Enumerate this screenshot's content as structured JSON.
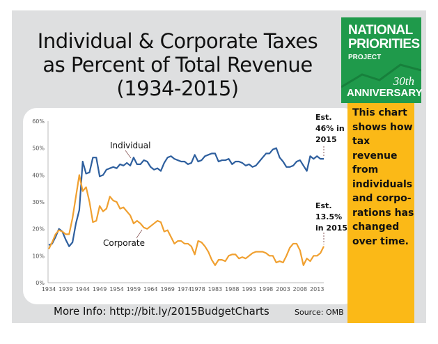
{
  "title": {
    "line1": "Individual & Corporate Taxes",
    "line2": "as Percent of Total Revenue",
    "line3": "(1934-2015)"
  },
  "logo": {
    "line1": "NATIONAL",
    "line2": "PRIORITIES",
    "line3": "PROJECT",
    "line4": "30th",
    "line5": "ANNIVERSARY",
    "color": "#1f9a4b"
  },
  "sidebar": {
    "lines": [
      "This chart",
      "shows how",
      "tax",
      "revenue",
      "from",
      "individuals",
      "and corpo-",
      "rations has",
      "changed",
      "over time."
    ],
    "color": "#fbb917"
  },
  "footer": {
    "info": "More Info: http://bit.ly/2015BudgetCharts",
    "source": "Source: OMB"
  },
  "chart_data": {
    "type": "line",
    "title": "",
    "xlim": [
      1934,
      2015
    ],
    "ylim": [
      0,
      60
    ],
    "yticks": [
      "0%",
      "10%",
      "20%",
      "30%",
      "40%",
      "50%",
      "60%"
    ],
    "xticks": [
      "1934",
      "1939",
      "1944",
      "1949",
      "1954",
      "1959",
      "1964",
      "1969",
      "1974",
      "1978",
      "1983",
      "1988",
      "1993",
      "1998",
      "2003",
      "2008",
      "2013"
    ],
    "grid": false,
    "annotations": {
      "individual_est": [
        "Est.",
        "46% in",
        "2015"
      ],
      "corporate_est": [
        "Est.",
        "13.5%",
        "in 2015"
      ]
    },
    "series": [
      {
        "name": "Individual",
        "color": "#2e5f9e",
        "values": [
          14,
          14.5,
          17,
          20,
          19,
          16,
          13.5,
          15,
          22,
          27,
          45,
          40.5,
          41,
          46.5,
          46.5,
          39.5,
          40,
          42,
          42.5,
          43,
          42.5,
          44,
          43.5,
          44.5,
          43.5,
          46.5,
          44,
          44,
          45.5,
          45,
          43,
          42,
          42.5,
          41.5,
          44.5,
          46.5,
          47,
          46,
          45.5,
          45,
          45,
          44,
          44.5,
          47.5,
          45,
          45.5,
          47,
          47.5,
          48,
          48,
          45,
          45.5,
          45.5,
          46,
          44,
          45,
          45,
          44.5,
          43.5,
          44,
          43,
          43.5,
          45,
          46.5,
          48,
          48,
          49.5,
          50,
          46.5,
          45,
          43,
          43,
          43.5,
          45,
          45.5,
          43.5,
          41.5,
          47,
          46,
          47,
          46,
          46
        ]
      },
      {
        "name": "Corporate",
        "color": "#f0a030",
        "values": [
          12.5,
          15,
          18,
          19.5,
          19,
          18,
          18,
          24,
          32,
          40,
          34,
          35.5,
          30,
          22.5,
          23,
          28.5,
          26.5,
          27.5,
          32,
          30.5,
          30,
          27.5,
          28,
          26.5,
          25,
          22,
          23,
          22,
          20.5,
          20,
          21,
          22,
          23,
          22.5,
          19,
          19.5,
          17,
          14.5,
          15.5,
          15.5,
          14.5,
          14.5,
          13.5,
          10.5,
          15.5,
          15,
          13.5,
          11.5,
          8.5,
          6.5,
          8.5,
          8.5,
          8,
          10,
          10.5,
          10.5,
          9,
          9.5,
          9,
          10,
          11,
          11.5,
          11.5,
          11.5,
          11,
          10,
          10,
          7.5,
          8,
          7.5,
          10,
          13,
          14.5,
          14.5,
          12,
          6.5,
          9,
          8,
          10,
          10,
          11,
          13.5
        ]
      }
    ]
  }
}
